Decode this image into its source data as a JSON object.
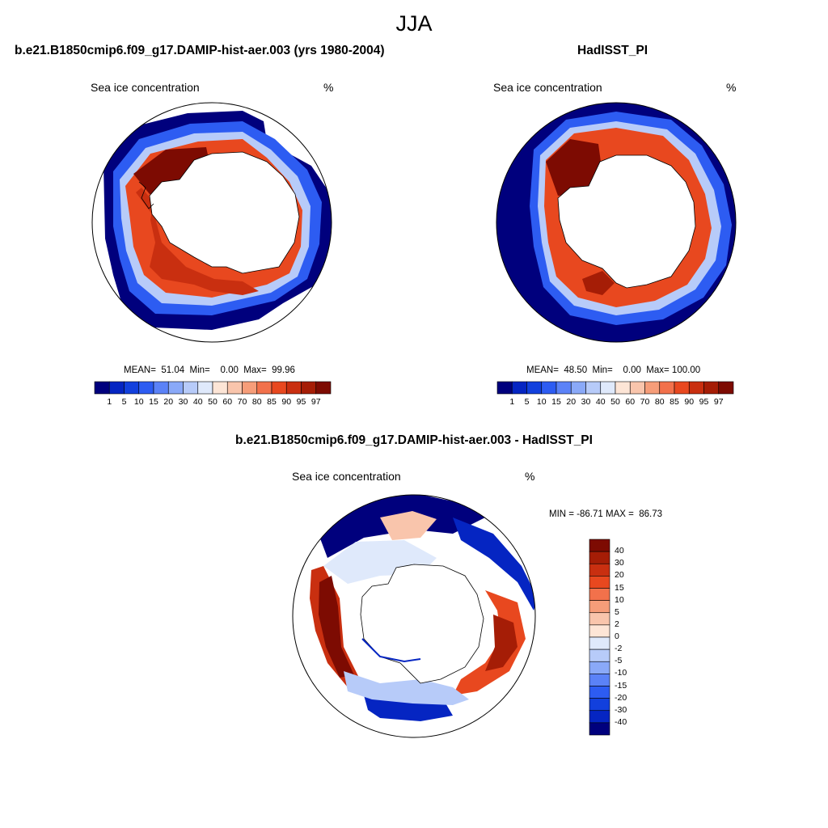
{
  "main_title": "JJA",
  "panels": {
    "model": {
      "title": "b.e21.B1850cmip6.f09_g17.DAMIP-hist-aer.003 (yrs 1980-2004)",
      "field": "Sea ice concentration",
      "units": "%",
      "stats": "MEAN=  51.04  Min=    0.00  Max=  99.96"
    },
    "obs": {
      "title": "HadISST_PI",
      "field": "Sea ice concentration",
      "units": "%",
      "stats": "MEAN=  48.50  Min=    0.00  Max= 100.00"
    },
    "diff": {
      "title": "b.e21.B1850cmip6.f09_g17.DAMIP-hist-aer.003 - HadISST_PI",
      "field": "Sea ice concentration",
      "units": "%",
      "stats": "MIN = -86.71 MAX =  86.73"
    }
  },
  "colorbar_abs": {
    "labels": [
      "1",
      "5",
      "10",
      "15",
      "20",
      "30",
      "40",
      "50",
      "60",
      "70",
      "80",
      "85",
      "90",
      "95",
      "97"
    ],
    "colors": [
      "#00007d",
      "#0525c2",
      "#1240dd",
      "#2d5cf2",
      "#5b82f7",
      "#8aa9f8",
      "#b7cbf9",
      "#dfe9fb",
      "#fde5d6",
      "#f9c5ac",
      "#f69d79",
      "#f2714b",
      "#e8481f",
      "#c92f10",
      "#a51d06",
      "#7d0b02"
    ]
  },
  "colorbar_diff": {
    "labels": [
      "40",
      "30",
      "20",
      "15",
      "10",
      "5",
      "2",
      "0",
      "-2",
      "-5",
      "-10",
      "-15",
      "-20",
      "-30",
      "-40"
    ],
    "colors": [
      "#7d0b02",
      "#a51d06",
      "#c92f10",
      "#e8481f",
      "#f2714b",
      "#f69d79",
      "#f9c5ac",
      "#fde5d6",
      "#dfe9fb",
      "#b7cbf9",
      "#8aa9f8",
      "#5b82f7",
      "#2d5cf2",
      "#1240dd",
      "#0525c2",
      "#00007d"
    ]
  }
}
